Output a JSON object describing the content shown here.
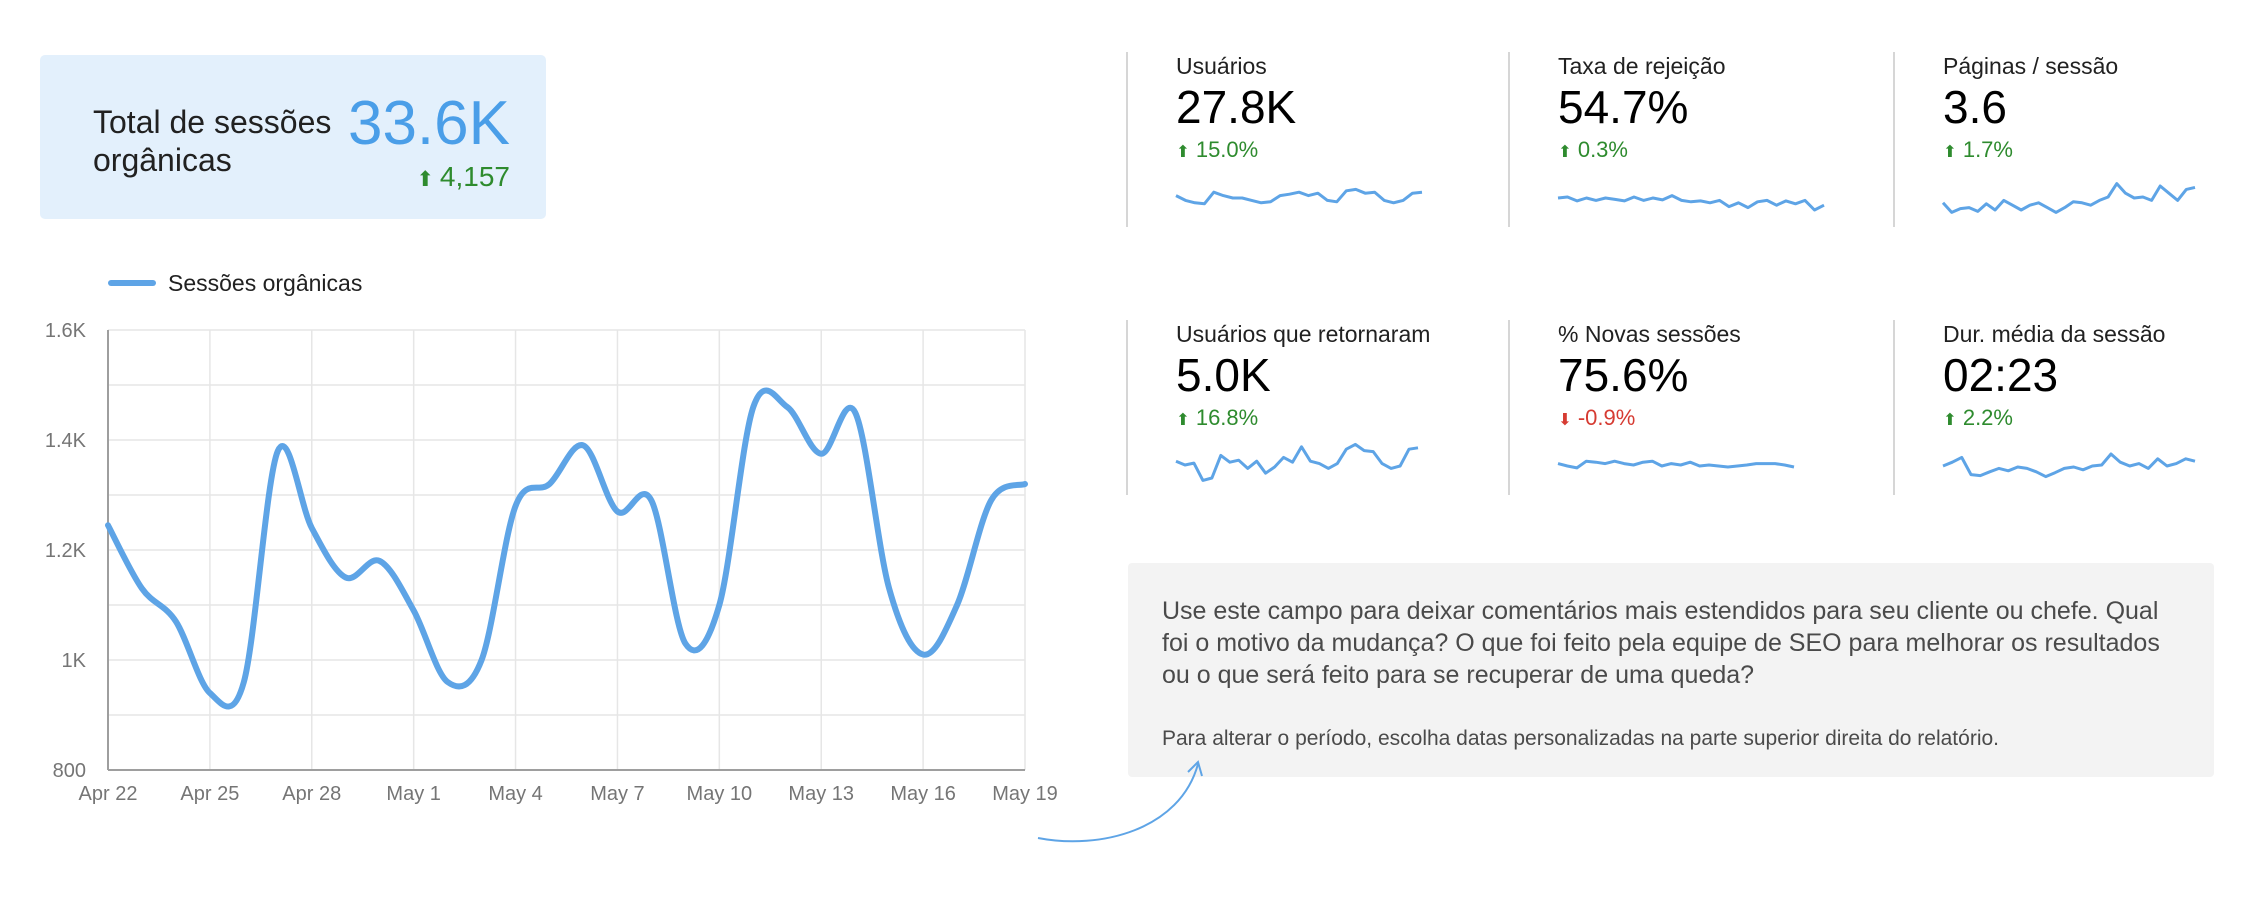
{
  "total_card": {
    "label": "Total de sessões orgânicas",
    "value": "33.6K",
    "delta": "4,157",
    "delta_direction": "up"
  },
  "legend": {
    "series_label": "Sessões orgânicas"
  },
  "kpis": [
    {
      "title": "Usuários",
      "value": "27.8K",
      "delta": "15.0%",
      "direction": "up",
      "spark": [
        0.55,
        0.45,
        0.4,
        0.38,
        0.62,
        0.55,
        0.5,
        0.5,
        0.45,
        0.4,
        0.42,
        0.55,
        0.58,
        0.62,
        0.55,
        0.6,
        0.45,
        0.42,
        0.65,
        0.68,
        0.6,
        0.62,
        0.45,
        0.4,
        0.45,
        0.6,
        0.62
      ]
    },
    {
      "title": "Taxa de rejeição",
      "value": "54.7%",
      "delta": "0.3%",
      "direction": "up",
      "spark": [
        0.5,
        0.52,
        0.44,
        0.5,
        0.45,
        0.5,
        0.47,
        0.44,
        0.52,
        0.45,
        0.5,
        0.46,
        0.55,
        0.45,
        0.42,
        0.44,
        0.4,
        0.45,
        0.32,
        0.4,
        0.3,
        0.42,
        0.45,
        0.35,
        0.44,
        0.38,
        0.45,
        0.25,
        0.35
      ]
    },
    {
      "title": "Páginas / sessão",
      "value": "3.6",
      "delta": "1.7%",
      "direction": "up",
      "spark": [
        0.4,
        0.2,
        0.28,
        0.3,
        0.22,
        0.38,
        0.25,
        0.45,
        0.35,
        0.25,
        0.35,
        0.4,
        0.3,
        0.2,
        0.3,
        0.42,
        0.4,
        0.35,
        0.45,
        0.52,
        0.8,
        0.6,
        0.5,
        0.52,
        0.45,
        0.75,
        0.6,
        0.45,
        0.68,
        0.72
      ]
    },
    {
      "title": "Usuários que retornaram",
      "value": "5.0K",
      "delta": "16.8%",
      "direction": "up",
      "spark": [
        0.6,
        0.52,
        0.56,
        0.2,
        0.25,
        0.72,
        0.58,
        0.62,
        0.45,
        0.6,
        0.35,
        0.48,
        0.68,
        0.58,
        0.9,
        0.6,
        0.55,
        0.45,
        0.55,
        0.85,
        0.95,
        0.82,
        0.8,
        0.55,
        0.45,
        0.5,
        0.85,
        0.88
      ]
    },
    {
      "title": "% Novas sessões",
      "value": "75.6%",
      "delta": "-0.9%",
      "direction": "down",
      "spark": [
        0.55,
        0.5,
        0.46,
        0.6,
        0.58,
        0.55,
        0.6,
        0.55,
        0.52,
        0.58,
        0.6,
        0.5,
        0.55,
        0.52,
        0.58,
        0.5,
        0.52,
        0.5,
        0.48,
        0.5,
        0.52,
        0.55,
        0.55,
        0.55,
        0.52,
        0.48
      ]
    },
    {
      "title": "Dur. média da sessão",
      "value": "02:23",
      "delta": "2.2%",
      "direction": "up",
      "spark": [
        0.5,
        0.58,
        0.68,
        0.32,
        0.3,
        0.38,
        0.45,
        0.4,
        0.48,
        0.45,
        0.38,
        0.28,
        0.36,
        0.45,
        0.48,
        0.42,
        0.5,
        0.52,
        0.75,
        0.58,
        0.5,
        0.55,
        0.45,
        0.65,
        0.5,
        0.55,
        0.65,
        0.6
      ]
    }
  ],
  "comment": {
    "main": "Use este campo para deixar comentários mais estendidos para seu cliente ou chefe. Qual foi o motivo da mudança? O que foi feito pela equipe de SEO para melhorar os resultados ou o que será feito para se recuperar de uma queda?",
    "note": "Para alterar o período, escolha datas personalizadas na parte superior direita do relatório."
  },
  "colors": {
    "line": "#5ea4e6",
    "accent_value": "#4a9ee8",
    "up": "#2e8b2e",
    "down": "#d63b32",
    "card_bg": "#e3f0fc",
    "comment_bg": "#f3f3f3"
  },
  "chart_data": {
    "type": "line",
    "title": "",
    "xlabel": "",
    "ylabel": "",
    "x_tick_labels": [
      "Apr 22",
      "Apr 25",
      "Apr 28",
      "May 1",
      "May 4",
      "May 7",
      "May 10",
      "May 13",
      "May 16",
      "May 19"
    ],
    "y_tick_labels": [
      "800",
      "1K",
      "1.2K",
      "1.4K",
      "1.6K"
    ],
    "y_ticks": [
      800,
      1000,
      1200,
      1400,
      1600
    ],
    "ylim": [
      800,
      1600
    ],
    "grid": true,
    "legend_position": "top-left",
    "series": [
      {
        "name": "Sessões orgânicas",
        "x": [
          "Apr 22",
          "Apr 23",
          "Apr 24",
          "Apr 25",
          "Apr 26",
          "Apr 27",
          "Apr 28",
          "Apr 29",
          "Apr 30",
          "May 1",
          "May 2",
          "May 3",
          "May 4",
          "May 5",
          "May 6",
          "May 7",
          "May 8",
          "May 9",
          "May 10",
          "May 11",
          "May 12",
          "May 13",
          "May 14",
          "May 15",
          "May 16",
          "May 17",
          "May 18",
          "May 19"
        ],
        "values": [
          1245,
          1130,
          1070,
          940,
          960,
          1380,
          1240,
          1150,
          1180,
          1090,
          960,
          1000,
          1280,
          1320,
          1390,
          1270,
          1290,
          1030,
          1100,
          1460,
          1460,
          1375,
          1450,
          1130,
          1010,
          1100,
          1290,
          1320
        ]
      }
    ]
  }
}
